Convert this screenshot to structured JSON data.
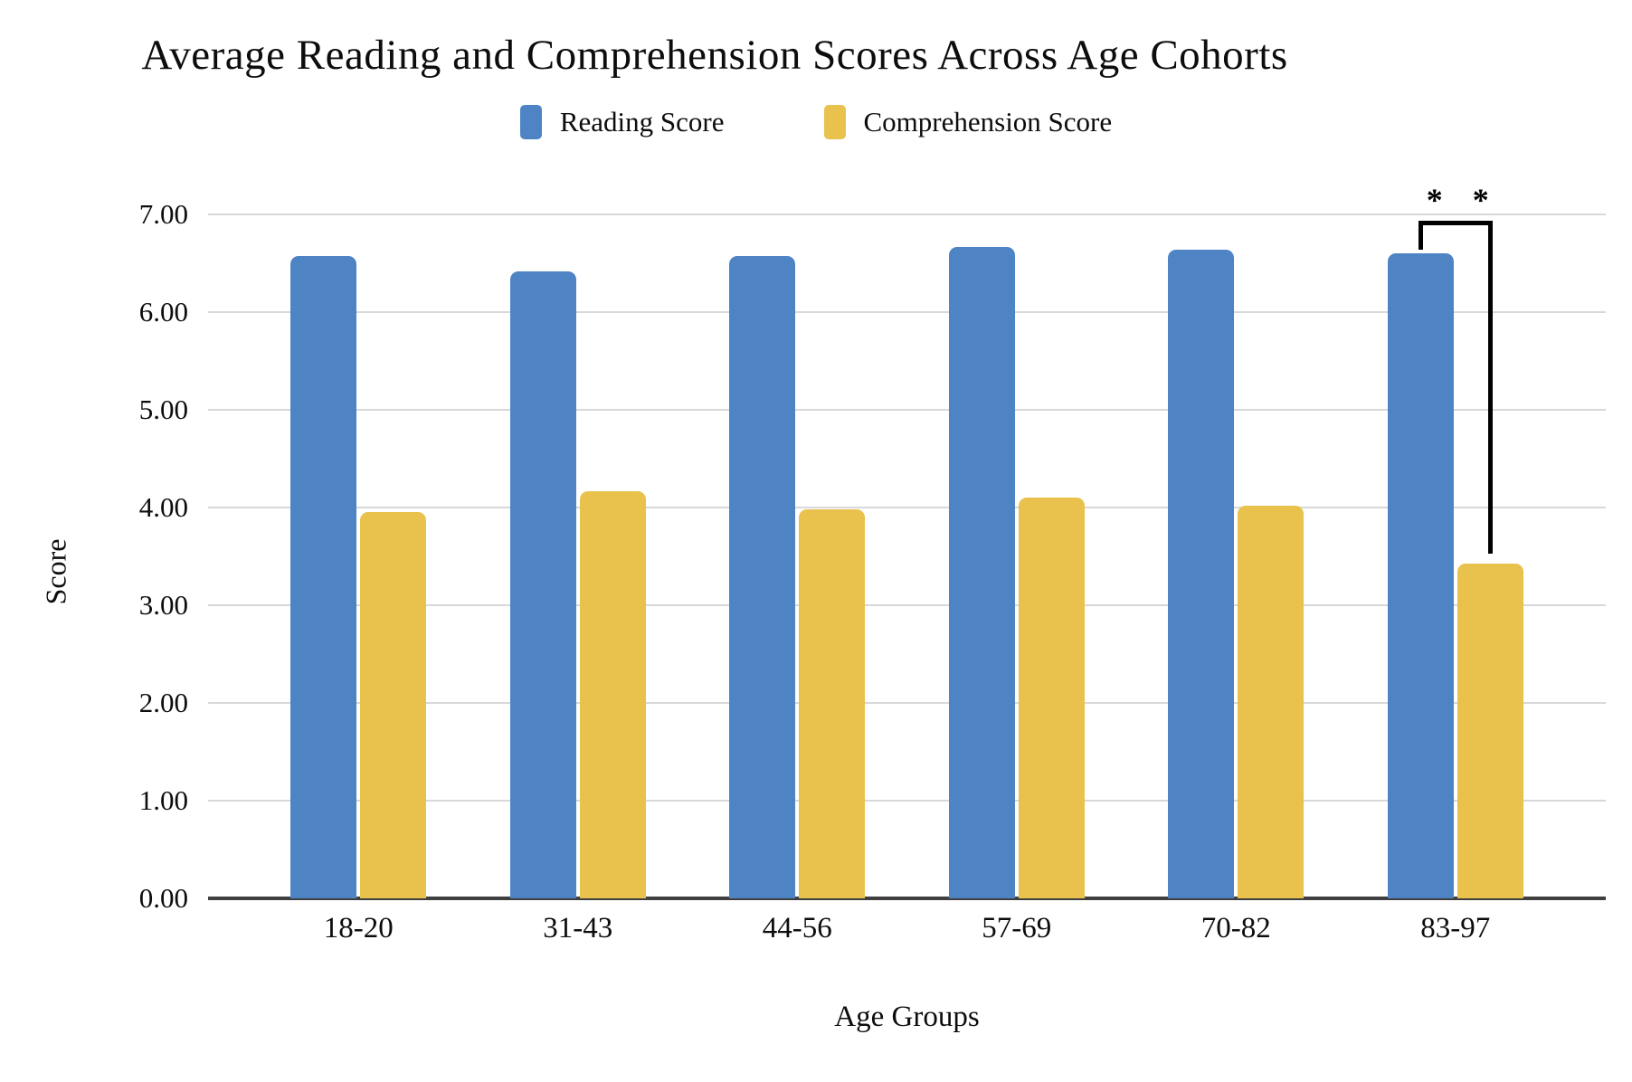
{
  "title": "Average Reading and Comprehension Scores Across Age Cohorts",
  "legend": [
    {
      "label": "Reading Score",
      "color": "#4E84C4"
    },
    {
      "label": "Comprehension Score",
      "color": "#E8C24C"
    }
  ],
  "axes": {
    "ylabel": "Score",
    "xlabel": "Age Groups",
    "y_ticks": [
      "7.00",
      "6.00",
      "5.00",
      "4.00",
      "3.00",
      "2.00",
      "1.00",
      "0.00"
    ]
  },
  "colors": {
    "gridline": "#d8d8d8",
    "axis_line": "#3f3f3f",
    "bracket": "#000000"
  },
  "chart_data": {
    "type": "bar",
    "categories": [
      "18-20",
      "31-43",
      "44-56",
      "57-69",
      "70-82",
      "83-97"
    ],
    "series": [
      {
        "name": "Reading Score",
        "color": "#4E84C4",
        "values": [
          6.57,
          6.42,
          6.57,
          6.67,
          6.64,
          6.6
        ]
      },
      {
        "name": "Comprehension Score",
        "color": "#E8C24C",
        "values": [
          3.95,
          4.17,
          3.98,
          4.1,
          4.02,
          3.43
        ]
      }
    ],
    "title": "Average Reading and Comprehension Scores Across Age Cohorts",
    "xlabel": "Age Groups",
    "ylabel": "Score",
    "ylim": [
      0,
      7
    ],
    "y_tick_step": 1,
    "grid": "horizontal",
    "legend_position": "top",
    "annotation": {
      "text": "* *",
      "type": "significance-bracket",
      "category": "83-97",
      "from_series": "Reading Score",
      "to_series": "Comprehension Score"
    }
  }
}
